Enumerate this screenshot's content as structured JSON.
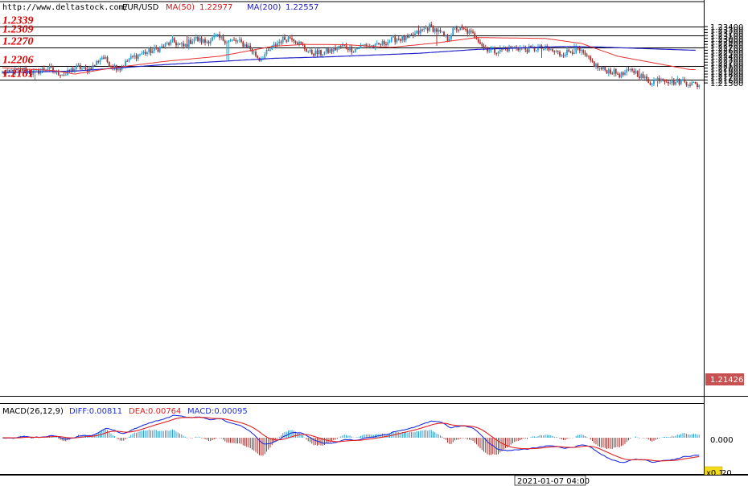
{
  "header": {
    "url": "http://www.deltastock.com/",
    "symbol": "EUR/USD",
    "ma50_label": "MA(50)",
    "ma50_value": "1.22977",
    "ma200_label": "MA(200)",
    "ma200_value": "1.22557"
  },
  "colors": {
    "bull": "#2a9cd0",
    "bear": "#a8302e",
    "ma50": "#e43333",
    "ma200": "#2323c8",
    "level_label": "#e00000",
    "price_badge": "#c85050",
    "diff": "#1f2fe0",
    "dea": "#e02020"
  },
  "levels": [
    {
      "label": "1.2339",
      "value": 1.2339
    },
    {
      "label": "1.2309",
      "value": 1.2309
    },
    {
      "label": "1.2270",
      "value": 1.227
    },
    {
      "label": "1.2206",
      "value": 1.2206
    },
    {
      "label": "1.2161",
      "value": 1.2161
    }
  ],
  "price_axis": {
    "ticks": [
      "1.23400",
      "1.23300",
      "1.23200",
      "1.23100",
      "1.23000",
      "1.22900",
      "1.22800",
      "1.22700",
      "1.22600",
      "1.22500",
      "1.22400",
      "1.22300",
      "1.22200",
      "1.22100",
      "1.22000",
      "1.21900",
      "1.21800",
      "1.21700",
      "1.21600",
      "1.21500"
    ],
    "current_price": "1.21426"
  },
  "macd": {
    "title": "MACD(26,12,9)",
    "diff_label": "DIFF:0.00811",
    "dea_label": "DEA:0.00764",
    "macd_label": "MACD:0.00095",
    "zero_tick": "0.000",
    "scale_badge": "x0.1",
    "partial_label": "20"
  },
  "time_label": "2021-01-07 04:00",
  "chart_data": {
    "type": "candlestick",
    "ylim": [
      1.2135,
      1.2348
    ],
    "anchors": [
      [
        0,
        1.2185
      ],
      [
        4,
        1.2182
      ],
      [
        8,
        1.219
      ],
      [
        12,
        1.2196
      ],
      [
        16,
        1.2184
      ],
      [
        20,
        1.219
      ],
      [
        25,
        1.22
      ],
      [
        30,
        1.2185
      ],
      [
        35,
        1.2178
      ],
      [
        38,
        1.2194
      ],
      [
        42,
        1.2203
      ],
      [
        46,
        1.2192
      ],
      [
        50,
        1.2206
      ],
      [
        55,
        1.2238
      ],
      [
        60,
        1.2212
      ],
      [
        65,
        1.2198
      ],
      [
        70,
        1.223
      ],
      [
        76,
        1.2248
      ],
      [
        82,
        1.2257
      ],
      [
        88,
        1.227
      ],
      [
        94,
        1.229
      ],
      [
        100,
        1.2272
      ],
      [
        106,
        1.23
      ],
      [
        112,
        1.2288
      ],
      [
        118,
        1.2305
      ],
      [
        124,
        1.2292
      ],
      [
        130,
        1.229
      ],
      [
        136,
        1.2272
      ],
      [
        142,
        1.223
      ],
      [
        148,
        1.2262
      ],
      [
        154,
        1.2295
      ],
      [
        160,
        1.2305
      ],
      [
        164,
        1.2283
      ],
      [
        170,
        1.2252
      ],
      [
        176,
        1.225
      ],
      [
        182,
        1.226
      ],
      [
        188,
        1.2275
      ],
      [
        194,
        1.2262
      ],
      [
        200,
        1.2278
      ],
      [
        206,
        1.2272
      ],
      [
        212,
        1.2288
      ],
      [
        218,
        1.23
      ],
      [
        224,
        1.2298
      ],
      [
        230,
        1.2321
      ],
      [
        236,
        1.2338
      ],
      [
        240,
        1.2327
      ],
      [
        246,
        1.2298
      ],
      [
        250,
        1.2335
      ],
      [
        256,
        1.2326
      ],
      [
        262,
        1.2305
      ],
      [
        266,
        1.227
      ],
      [
        272,
        1.2258
      ],
      [
        278,
        1.2265
      ],
      [
        284,
        1.227
      ],
      [
        290,
        1.2263
      ],
      [
        296,
        1.2268
      ],
      [
        302,
        1.2262
      ],
      [
        308,
        1.2247
      ],
      [
        314,
        1.2258
      ],
      [
        318,
        1.2262
      ],
      [
        324,
        1.2228
      ],
      [
        330,
        1.2198
      ],
      [
        336,
        1.219
      ],
      [
        342,
        1.2176
      ],
      [
        348,
        1.2194
      ],
      [
        354,
        1.2168
      ],
      [
        358,
        1.2152
      ],
      [
        364,
        1.2168
      ],
      [
        370,
        1.2152
      ],
      [
        376,
        1.2158
      ],
      [
        380,
        1.2149
      ],
      [
        384,
        1.2143
      ]
    ],
    "spikes": [
      [
        12,
        1.2203,
        null
      ],
      [
        18,
        null,
        1.2161
      ],
      [
        102,
        1.231,
        null
      ],
      [
        124,
        null,
        1.2228
      ],
      [
        125,
        null,
        1.2225
      ],
      [
        160,
        1.2312,
        null
      ],
      [
        230,
        1.2344,
        null
      ],
      [
        234,
        1.2345,
        null
      ],
      [
        240,
        null,
        1.2275
      ],
      [
        250,
        1.234,
        null
      ],
      [
        268,
        null,
        1.2249
      ],
      [
        298,
        null,
        1.2235
      ],
      [
        316,
        1.2283,
        null
      ],
      [
        320,
        null,
        1.2244
      ],
      [
        352,
        1.2198,
        null
      ],
      [
        362,
        null,
        1.2137
      ],
      [
        370,
        1.2172,
        null
      ]
    ],
    "ma50": [
      [
        0,
        1.2201
      ],
      [
        28,
        1.2192
      ],
      [
        40,
        1.218
      ],
      [
        60,
        1.22
      ],
      [
        90,
        1.2223
      ],
      [
        120,
        1.224
      ],
      [
        150,
        1.2274
      ],
      [
        168,
        1.228
      ],
      [
        190,
        1.2279
      ],
      [
        205,
        1.2273
      ],
      [
        215,
        1.227
      ],
      [
        240,
        1.2285
      ],
      [
        262,
        1.2303
      ],
      [
        300,
        1.23
      ],
      [
        320,
        1.2283
      ],
      [
        340,
        1.224
      ],
      [
        380,
        1.2195
      ]
    ],
    "ma200": [
      [
        0,
        1.2185
      ],
      [
        40,
        1.219
      ],
      [
        90,
        1.2212
      ],
      [
        150,
        1.2233
      ],
      [
        180,
        1.2238
      ],
      [
        230,
        1.225
      ],
      [
        262,
        1.2263
      ],
      [
        310,
        1.2273
      ],
      [
        330,
        1.2271
      ],
      [
        383,
        1.226
      ]
    ],
    "macd_zero_y": 544,
    "macd_scale": 13000
  }
}
